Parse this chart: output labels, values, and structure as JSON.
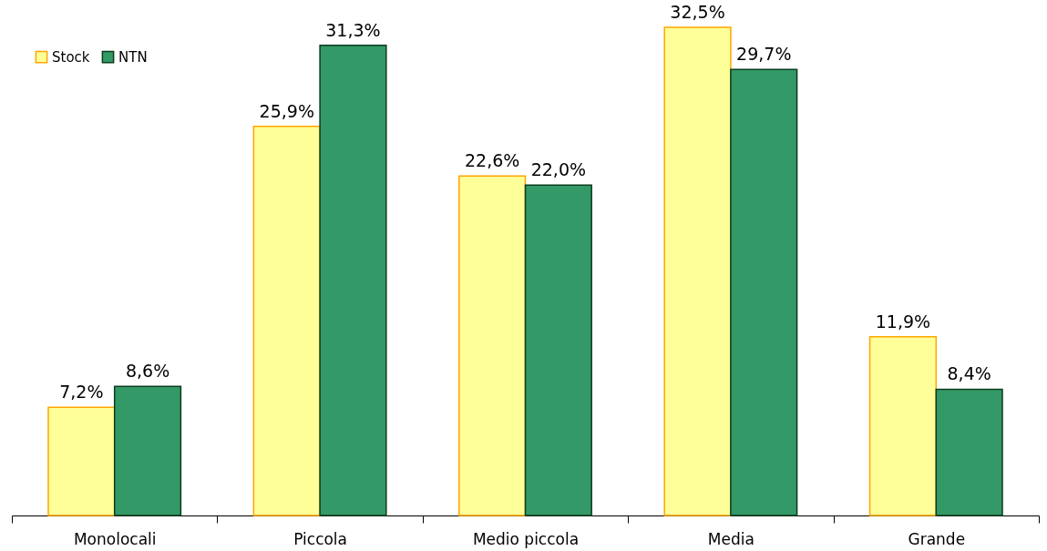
{
  "chart_data": {
    "type": "bar",
    "categories": [
      "Monolocali",
      "Piccola",
      "Medio piccola",
      "Media",
      "Grande"
    ],
    "tick_labels": "x",
    "legend": "top left",
    "series": [
      {
        "name": "Stock",
        "color": "#ffff99",
        "values": [
          7.2,
          25.9,
          22.6,
          32.5,
          11.9
        ],
        "value_labels": [
          "7,2%",
          "25,9%",
          "22,6%",
          "32,5%",
          "11,9%"
        ]
      },
      {
        "name": "NTN",
        "color": "#339966",
        "values": [
          8.6,
          31.3,
          22.0,
          29.7,
          8.4
        ],
        "value_labels": [
          "8,6%",
          "31,3%",
          "22,0%",
          "29,7%",
          "8,4%"
        ]
      }
    ]
  }
}
